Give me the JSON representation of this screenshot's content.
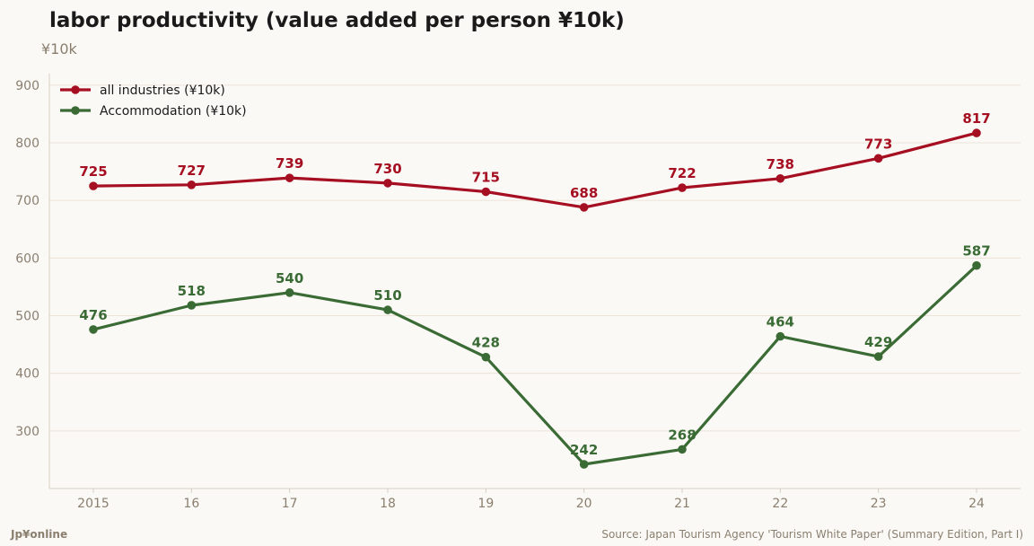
{
  "chart_data": {
    "type": "line",
    "title": "labor productivity (value added per person ¥10k)",
    "y_unit_label": "¥10k",
    "x": [
      "2015",
      "16",
      "17",
      "18",
      "19",
      "20",
      "21",
      "22",
      "23",
      "24"
    ],
    "series": [
      {
        "name": "all industries (¥10k)",
        "color": "#a50f21",
        "values": [
          725,
          727,
          739,
          730,
          715,
          688,
          722,
          738,
          773,
          817
        ]
      },
      {
        "name": "Accommodation (¥10k)",
        "color": "#3a6b35",
        "values": [
          476,
          518,
          540,
          510,
          428,
          242,
          268,
          464,
          429,
          587
        ]
      }
    ],
    "ylim": [
      200,
      920
    ],
    "yticks": [
      300,
      400,
      500,
      600,
      700,
      800,
      900
    ],
    "grid": true,
    "legend_position": "top-left"
  },
  "footer": {
    "brand": "Jp¥online",
    "source": "Source: Japan Tourism Agency 'Tourism White Paper' (Summary Edition, Part I)"
  }
}
